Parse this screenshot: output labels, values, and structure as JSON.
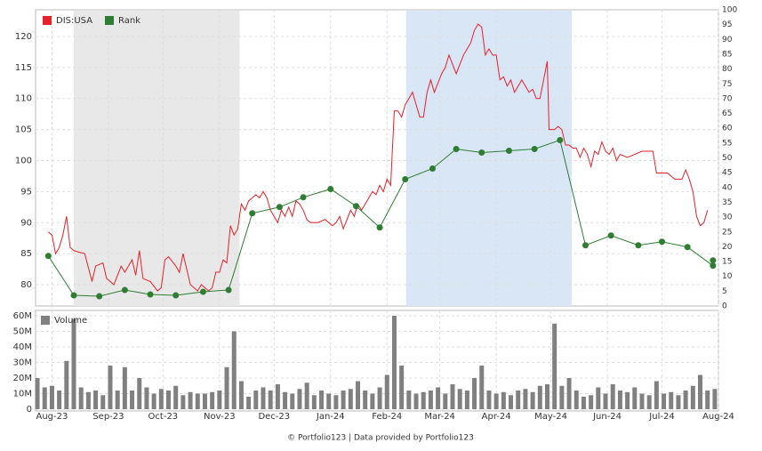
{
  "chart_data": [
    {
      "type": "line",
      "xlim": [
        -9,
        366
      ],
      "ylim": [
        76.56,
        124.3
      ],
      "yticks": [
        80,
        85,
        90,
        95,
        100,
        105,
        110,
        115,
        120
      ],
      "y2lim": [
        0,
        100
      ],
      "y2ticks": [
        0,
        5,
        10,
        15,
        20,
        25,
        30,
        35,
        40,
        45,
        50,
        55,
        60,
        65,
        70,
        75,
        80,
        85,
        90,
        95,
        100
      ],
      "grid": true,
      "legend": "top-left",
      "bands": [
        {
          "start": 12,
          "end": 103,
          "color": "#e8e8e8"
        },
        {
          "start": 194.5,
          "end": 285.4,
          "color": "#d9e6f6"
        }
      ],
      "series": [
        {
          "name": "DIS:USA",
          "color": "#e8202a",
          "x": [
            -2,
            0,
            2,
            4,
            6,
            8,
            10,
            12,
            14,
            18,
            22,
            24,
            28,
            30,
            34,
            38,
            40,
            44,
            46,
            48,
            50,
            54,
            58,
            60,
            62,
            64,
            68,
            70,
            72,
            76,
            80,
            82,
            86,
            88,
            90,
            92,
            94,
            96,
            98,
            100,
            102,
            104,
            106,
            108,
            110,
            112,
            114,
            116,
            118,
            120,
            124,
            126,
            128,
            130,
            132,
            134,
            136,
            138,
            140,
            142,
            146,
            150,
            154,
            156,
            158,
            160,
            162,
            164,
            166,
            168,
            170,
            172,
            174,
            176,
            178,
            180,
            182,
            184,
            186,
            188,
            190,
            192,
            194,
            196,
            198,
            200,
            202,
            204,
            206,
            208,
            210,
            212,
            214,
            216,
            218,
            222,
            226,
            228,
            230,
            232,
            234,
            236,
            238,
            240,
            242,
            244,
            246,
            248,
            250,
            252,
            254,
            256,
            258,
            260,
            262,
            264,
            266,
            268,
            270,
            272,
            273,
            276,
            278,
            280,
            282,
            284,
            286,
            288,
            290,
            292,
            294,
            296,
            298,
            300,
            302,
            304,
            306,
            308,
            310,
            312,
            316,
            320,
            324,
            328,
            330,
            332,
            334,
            338,
            342,
            344,
            346,
            348,
            350,
            352,
            354,
            356,
            358,
            360
          ],
          "values": [
            88.5,
            88,
            85,
            86,
            88,
            91,
            86,
            85.5,
            85.3,
            85,
            80.5,
            83,
            83.5,
            81,
            80,
            83,
            82,
            84,
            81.5,
            85.5,
            81,
            80.5,
            79,
            79.5,
            84,
            84.5,
            83,
            82,
            85,
            80,
            79,
            80,
            79,
            79.5,
            82,
            82,
            84,
            83.5,
            89.5,
            88,
            89,
            93,
            92,
            93.5,
            94,
            94.5,
            94,
            95,
            94,
            92,
            90,
            92,
            91,
            92.5,
            91,
            93.5,
            93,
            92,
            90.5,
            90,
            90,
            90.5,
            89.5,
            90,
            91,
            89,
            90.5,
            92,
            91,
            93,
            92,
            93,
            94,
            95,
            94.5,
            96,
            95,
            97,
            96,
            108,
            108,
            107,
            109,
            110,
            111,
            109,
            107,
            107,
            111,
            113,
            111,
            112.5,
            114,
            115,
            117,
            114,
            117,
            118,
            119,
            121,
            122,
            121.5,
            117,
            118,
            117,
            117,
            113,
            113.5,
            112,
            113,
            111,
            112,
            113,
            112,
            111,
            111.5,
            110,
            110,
            113,
            116,
            105,
            105,
            105.5,
            105,
            102.5,
            102.5,
            102,
            102,
            100.5,
            102,
            101,
            99,
            101.5,
            101,
            103,
            101.5,
            101,
            102,
            100,
            101,
            100.5,
            101,
            101.5,
            101.5,
            101.5,
            98,
            98,
            98,
            97,
            97,
            97,
            98.5,
            97,
            95,
            91,
            89.5,
            90,
            92
          ]
        },
        {
          "name": "Rank",
          "color": "#2e7d32",
          "axis": "y2",
          "markers": true,
          "x": [
            -2,
            12,
            26,
            40,
            54,
            68,
            83,
            97,
            110,
            125,
            138,
            153,
            167,
            180,
            194,
            209,
            222,
            236,
            251,
            265,
            279,
            293,
            307,
            322,
            335,
            349,
            363,
            363
          ],
          "values": [
            16.9,
            3.6,
            3.3,
            5.4,
            3.9,
            3.6,
            4.8,
            5.4,
            31.3,
            33.4,
            36.7,
            39.5,
            33.7,
            26.5,
            42.8,
            46.4,
            53,
            51.8,
            52.4,
            53,
            56,
            20.5,
            23.8,
            20.5,
            21.7,
            19.9,
            13.6,
            15.4
          ]
        }
      ]
    },
    {
      "type": "bar",
      "xlim": [
        -9,
        366
      ],
      "xticks": [
        {
          "value": 0,
          "label": "Aug-23"
        },
        {
          "value": 31,
          "label": "Sep-23"
        },
        {
          "value": 61,
          "label": "Oct-23"
        },
        {
          "value": 92,
          "label": "Nov-23"
        },
        {
          "value": 122,
          "label": "Dec-23"
        },
        {
          "value": 153,
          "label": "Jan-24"
        },
        {
          "value": 184,
          "label": "Feb-24"
        },
        {
          "value": 213,
          "label": "Mar-24"
        },
        {
          "value": 244,
          "label": "Apr-24"
        },
        {
          "value": 274,
          "label": "May-24"
        },
        {
          "value": 305,
          "label": "Jun-24"
        },
        {
          "value": 335,
          "label": "Jul-24"
        },
        {
          "value": 366,
          "label": "Aug-24"
        }
      ],
      "ylim": [
        0,
        60
      ],
      "yticks": [
        {
          "value": 0,
          "label": "0"
        },
        {
          "value": 10,
          "label": "10M"
        },
        {
          "value": 20,
          "label": "20M"
        },
        {
          "value": 30,
          "label": "30M"
        },
        {
          "value": 40,
          "label": "40M"
        },
        {
          "value": 50,
          "label": "50M"
        },
        {
          "value": 60,
          "label": "60M"
        }
      ],
      "grid": true,
      "legend": "top-left",
      "series": [
        {
          "name": "Volume",
          "color": "#808080",
          "x": [
            -8,
            -4,
            0,
            4,
            8,
            12,
            16,
            20,
            24,
            28,
            32,
            36,
            40,
            44,
            48,
            52,
            56,
            60,
            64,
            68,
            72,
            76,
            80,
            84,
            88,
            92,
            96,
            100,
            104,
            108,
            112,
            116,
            120,
            124,
            128,
            132,
            136,
            140,
            144,
            148,
            152,
            156,
            160,
            164,
            168,
            172,
            176,
            180,
            184,
            188,
            192,
            196,
            200,
            204,
            208,
            212,
            216,
            220,
            224,
            228,
            232,
            236,
            240,
            244,
            248,
            252,
            256,
            260,
            264,
            268,
            272,
            276,
            280,
            284,
            288,
            292,
            296,
            300,
            304,
            308,
            312,
            316,
            320,
            324,
            328,
            332,
            336,
            340,
            344,
            348,
            352,
            356,
            360,
            364
          ],
          "values": [
            20,
            14,
            15,
            12,
            31,
            58,
            14,
            11,
            12,
            9,
            28,
            12,
            27,
            12,
            20,
            14,
            10,
            13,
            12,
            15,
            9,
            11,
            10,
            10,
            11,
            12,
            27,
            50,
            18,
            8,
            12,
            14,
            12,
            16,
            11,
            10,
            13,
            17,
            9,
            12,
            10,
            9,
            12,
            13,
            18,
            12,
            10,
            14,
            22,
            60,
            28,
            12,
            10,
            11,
            12,
            14,
            10,
            16,
            13,
            12,
            20,
            28,
            12,
            10,
            11,
            9,
            12,
            13,
            11,
            15,
            16,
            55,
            15,
            20,
            12,
            8,
            9,
            14,
            10,
            16,
            12,
            11,
            14,
            10,
            9,
            18,
            10,
            11,
            9,
            12,
            15,
            22,
            12,
            13
          ]
        }
      ]
    }
  ],
  "footer": "© Portfolio123 | Data provided by Portfolio123"
}
